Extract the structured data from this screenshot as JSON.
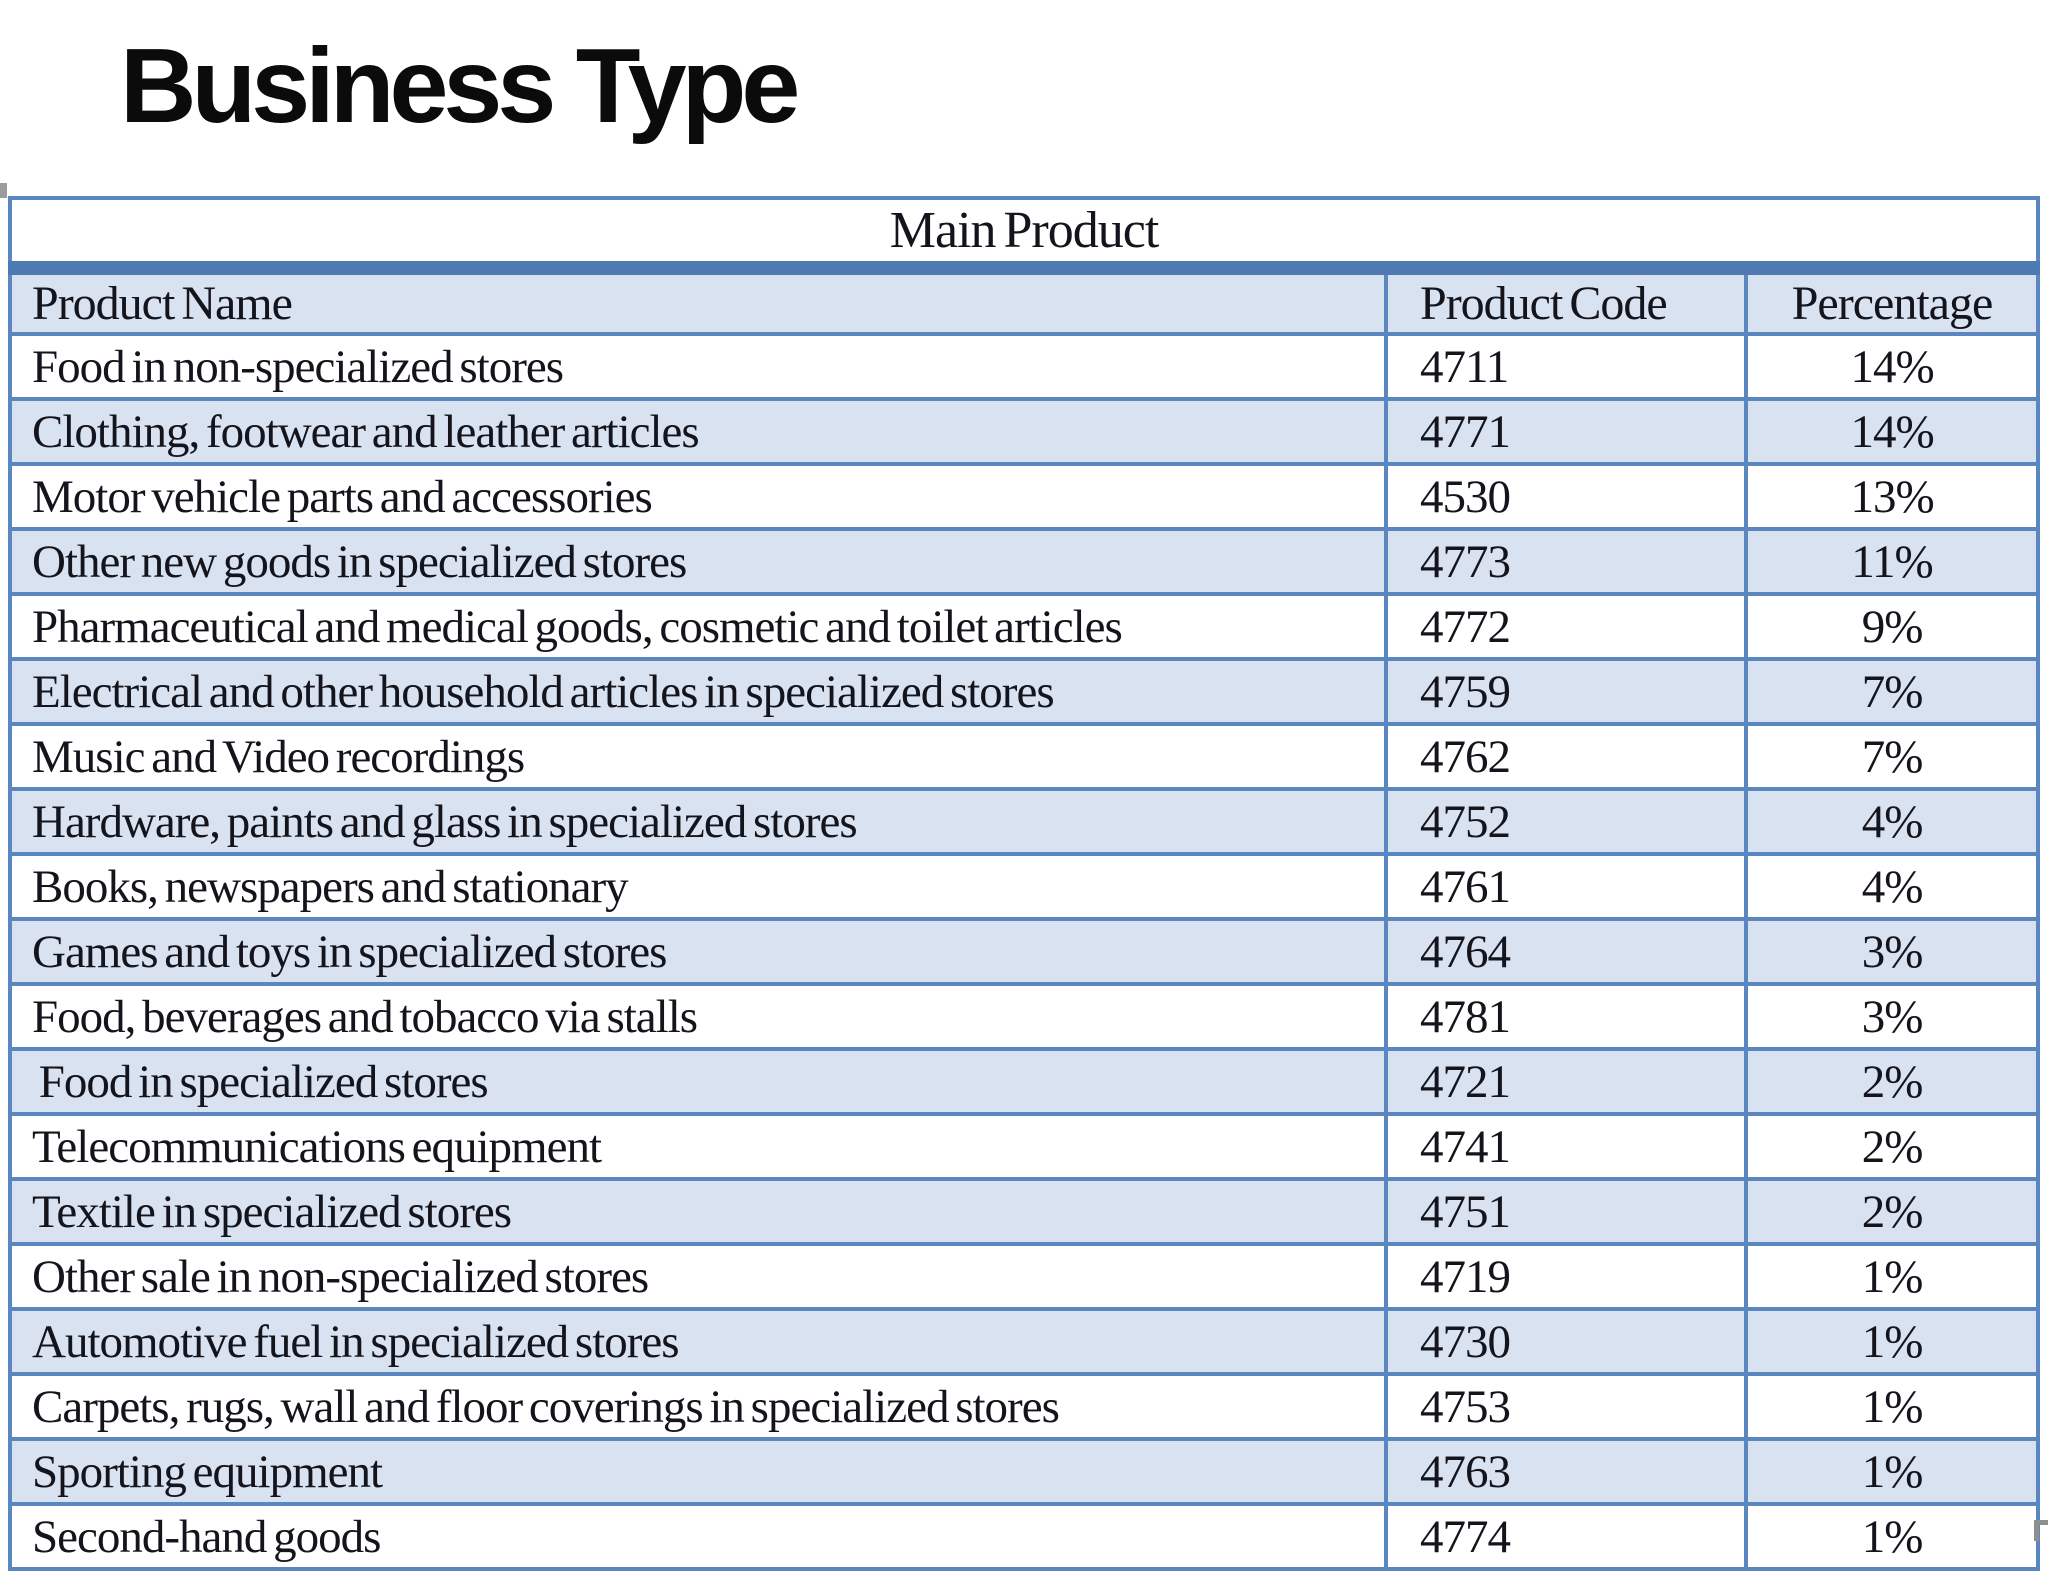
{
  "page_title": "Business Type",
  "table": {
    "title": "Main Product",
    "columns": [
      "Product Name",
      "Product Code",
      "Percentage"
    ],
    "rows": [
      {
        "name": "Food in non-specialized stores",
        "code": "4711",
        "pct": "14%"
      },
      {
        "name": "Clothing, footwear and leather articles",
        "code": "4771",
        "pct": "14%"
      },
      {
        "name": "Motor vehicle parts and accessories",
        "code": "4530",
        "pct": "13%"
      },
      {
        "name": "Other new goods in specialized stores",
        "code": "4773",
        "pct": "11%"
      },
      {
        "name": "Pharmaceutical and medical goods, cosmetic and toilet articles",
        "code": "4772",
        "pct": "9%"
      },
      {
        "name": "Electrical and other household articles in specialized stores",
        "code": "4759",
        "pct": "7%"
      },
      {
        "name": "Music and Video recordings",
        "code": "4762",
        "pct": "7%"
      },
      {
        "name": "Hardware, paints and glass in specialized stores",
        "code": "4752",
        "pct": "4%"
      },
      {
        "name": "Books, newspapers and stationary",
        "code": "4761",
        "pct": "4%"
      },
      {
        "name": "Games and toys in specialized stores",
        "code": "4764",
        "pct": "3%"
      },
      {
        "name": "Food, beverages and tobacco via stalls",
        "code": "4781",
        "pct": "3%"
      },
      {
        "name": " Food in specialized stores",
        "code": "4721",
        "pct": "2%"
      },
      {
        "name": "Telecommunications equipment",
        "code": "4741",
        "pct": "2%"
      },
      {
        "name": "Textile in specialized stores",
        "code": "4751",
        "pct": "2%"
      },
      {
        "name": "Other sale in non-specialized stores",
        "code": "4719",
        "pct": "1%"
      },
      {
        "name": "Automotive fuel in specialized stores",
        "code": "4730",
        "pct": "1%"
      },
      {
        "name": "Carpets, rugs, wall and floor coverings in specialized stores",
        "code": "4753",
        "pct": "1%"
      },
      {
        "name": "Sporting equipment",
        "code": "4763",
        "pct": "1%"
      },
      {
        "name": "Second-hand goods",
        "code": "4774",
        "pct": "1%"
      }
    ]
  },
  "colors": {
    "outer_border": "#4e7ab2",
    "gridline": "#5b87c0",
    "row_alt": "#d9e2f0",
    "row": "#ffffff",
    "text": "#14141c"
  }
}
